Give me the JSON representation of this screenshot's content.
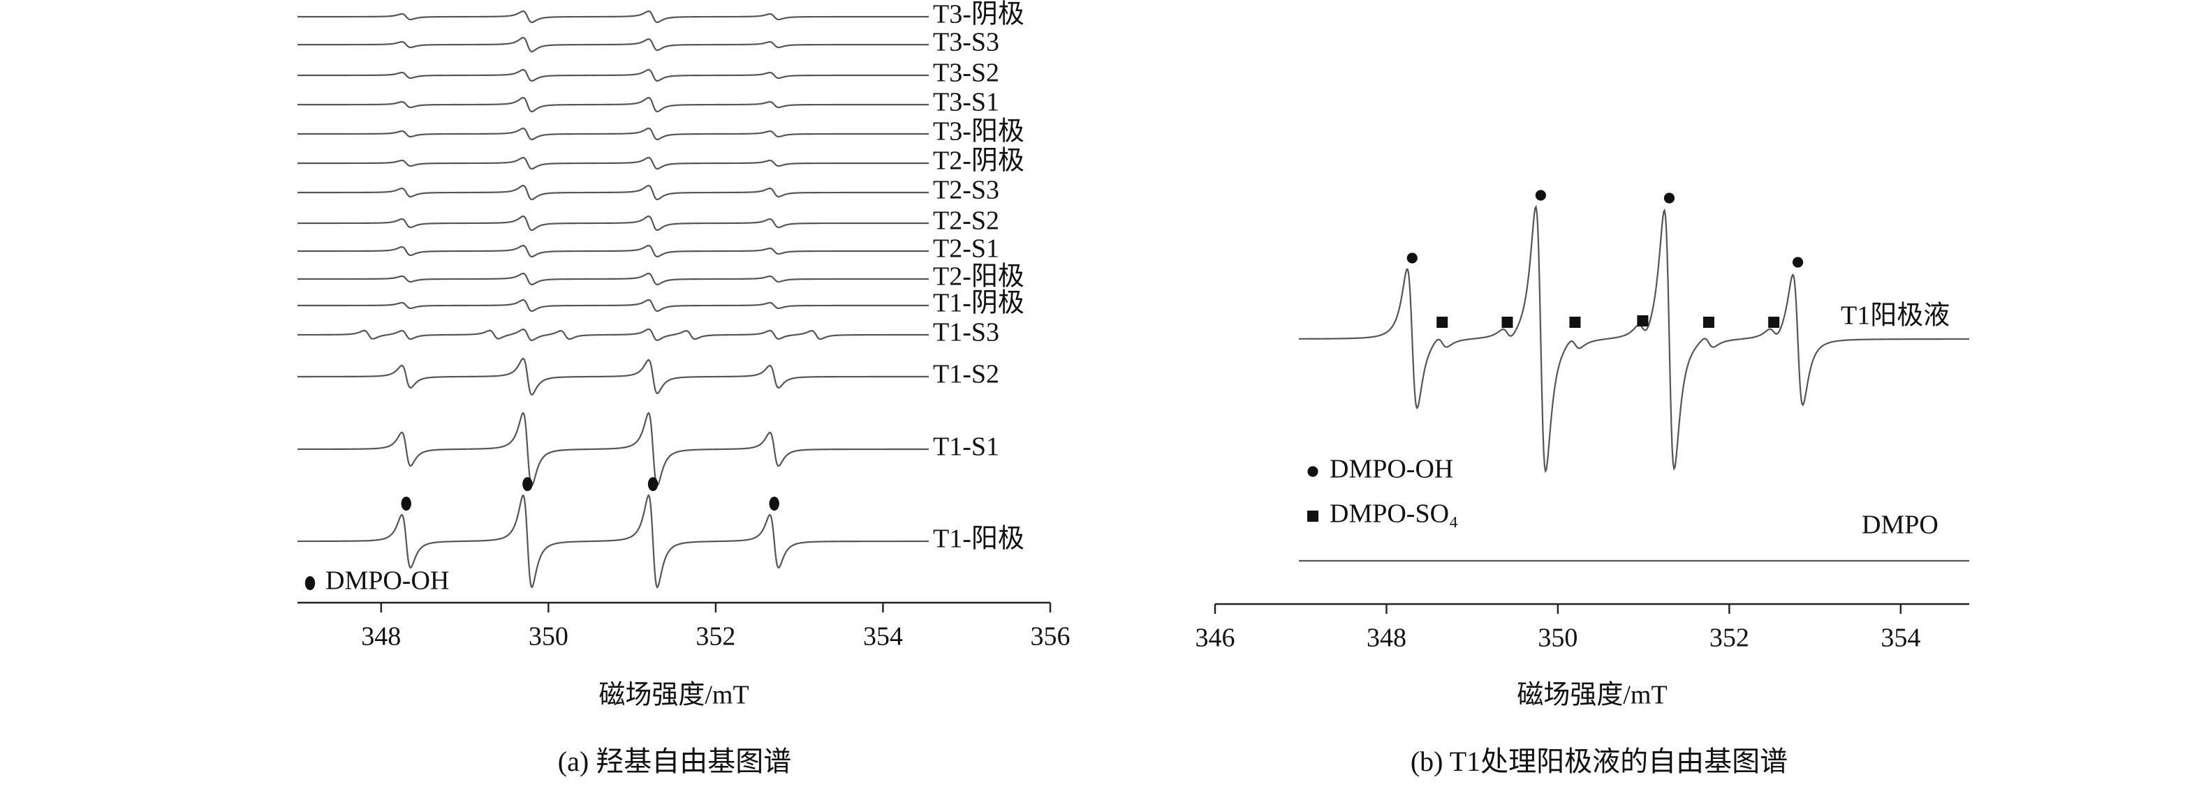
{
  "chart_data": [
    {
      "type": "epr",
      "xlim": [
        347,
        356
      ],
      "xticks": [
        348,
        350,
        352,
        354,
        356
      ],
      "xlabel": "磁场强度/mT",
      "caption": "(a) 羟基自由基图谱",
      "legend": [
        {
          "name": "DMPO-OH",
          "marker": "ellipse"
        }
      ],
      "series": [
        {
          "name": "T3-阴极",
          "color": "#555555",
          "x": [
            348.3,
            349.75,
            351.25,
            352.7
          ],
          "values": [
            2,
            4,
            4,
            2
          ]
        },
        {
          "name": "T3-S3",
          "color": "#555555",
          "x": [
            348.3,
            349.75,
            351.25,
            352.7
          ],
          "values": [
            2,
            5,
            4,
            2
          ]
        },
        {
          "name": "T3-S2",
          "color": "#555555",
          "x": [
            348.3,
            349.75,
            351.25,
            352.7
          ],
          "values": [
            2,
            4,
            4,
            2
          ]
        },
        {
          "name": "T3-S1",
          "color": "#555555",
          "x": [
            348.3,
            349.75,
            351.25,
            352.7
          ],
          "values": [
            2,
            5,
            5,
            2
          ]
        },
        {
          "name": "T3-阳极",
          "color": "#555555",
          "x": [
            348.3,
            349.75,
            351.25,
            352.7
          ],
          "values": [
            2,
            4,
            4,
            2
          ]
        },
        {
          "name": "T2-阴极",
          "color": "#555555",
          "x": [
            348.3,
            349.75,
            351.25,
            352.7
          ],
          "values": [
            2,
            4,
            4,
            2
          ]
        },
        {
          "name": "T2-S3",
          "color": "#555555",
          "x": [
            348.3,
            349.75,
            351.25,
            352.7
          ],
          "values": [
            3,
            5,
            5,
            3
          ]
        },
        {
          "name": "T2-S2",
          "color": "#555555",
          "x": [
            348.3,
            349.75,
            351.25,
            352.7
          ],
          "values": [
            3,
            5,
            5,
            3
          ]
        },
        {
          "name": "T2-S1",
          "color": "#555555",
          "x": [
            348.3,
            349.75,
            351.25,
            352.7
          ],
          "values": [
            3,
            4,
            4,
            2
          ]
        },
        {
          "name": "T2-阳极",
          "color": "#555555",
          "x": [
            348.3,
            349.75,
            351.25,
            352.7
          ],
          "values": [
            2,
            4,
            4,
            2
          ]
        },
        {
          "name": "T1-阴极",
          "color": "#555555",
          "x": [
            348.3,
            349.75,
            351.25,
            352.7
          ],
          "values": [
            2,
            4,
            4,
            2
          ]
        },
        {
          "name": "T1-S3",
          "color": "#555555",
          "x": [
            347.85,
            348.3,
            349.35,
            349.75,
            350.2,
            351.25,
            351.7,
            352.7,
            353.2
          ],
          "values": [
            3,
            3,
            3,
            4,
            3,
            4,
            3,
            3,
            3
          ]
        },
        {
          "name": "T1-S2",
          "color": "#555555",
          "x": [
            348.3,
            349.75,
            351.25,
            352.7
          ],
          "values": [
            8,
            13,
            12,
            8
          ]
        },
        {
          "name": "T1-S1",
          "color": "#555555",
          "x": [
            348.3,
            349.75,
            351.25,
            352.7
          ],
          "values": [
            12,
            26,
            26,
            12
          ]
        },
        {
          "name": "T1-阳极",
          "color": "#555555",
          "x": [
            348.3,
            349.75,
            351.25,
            352.7
          ],
          "values": [
            19,
            33,
            33,
            19
          ],
          "markers": [
            0,
            0,
            0,
            0
          ]
        }
      ]
    },
    {
      "type": "epr",
      "xlim": [
        346,
        354.8
      ],
      "xticks": [
        346,
        348,
        350,
        352,
        354
      ],
      "xlabel": "磁场强度/mT",
      "caption": "(b) T1处理阳极液的自由基图谱",
      "legend": [
        {
          "name": "DMPO-OH",
          "marker": "circle"
        },
        {
          "name": "DMPO-SO₄",
          "marker": "square"
        }
      ],
      "series": [
        {
          "name": "T1阳极液",
          "color": "#555555",
          "x": [
            348.3,
            348.65,
            349.41,
            349.8,
            350.2,
            350.99,
            351.3,
            351.76,
            352.52,
            352.8
          ],
          "values": [
            50,
            4,
            4,
            95,
            4,
            5,
            93,
            4,
            4,
            47
          ],
          "markers": [
            0,
            1,
            1,
            0,
            1,
            1,
            0,
            1,
            1,
            0
          ]
        },
        {
          "name": "DMPO",
          "color": "#555555",
          "x": [],
          "values": []
        }
      ]
    }
  ]
}
